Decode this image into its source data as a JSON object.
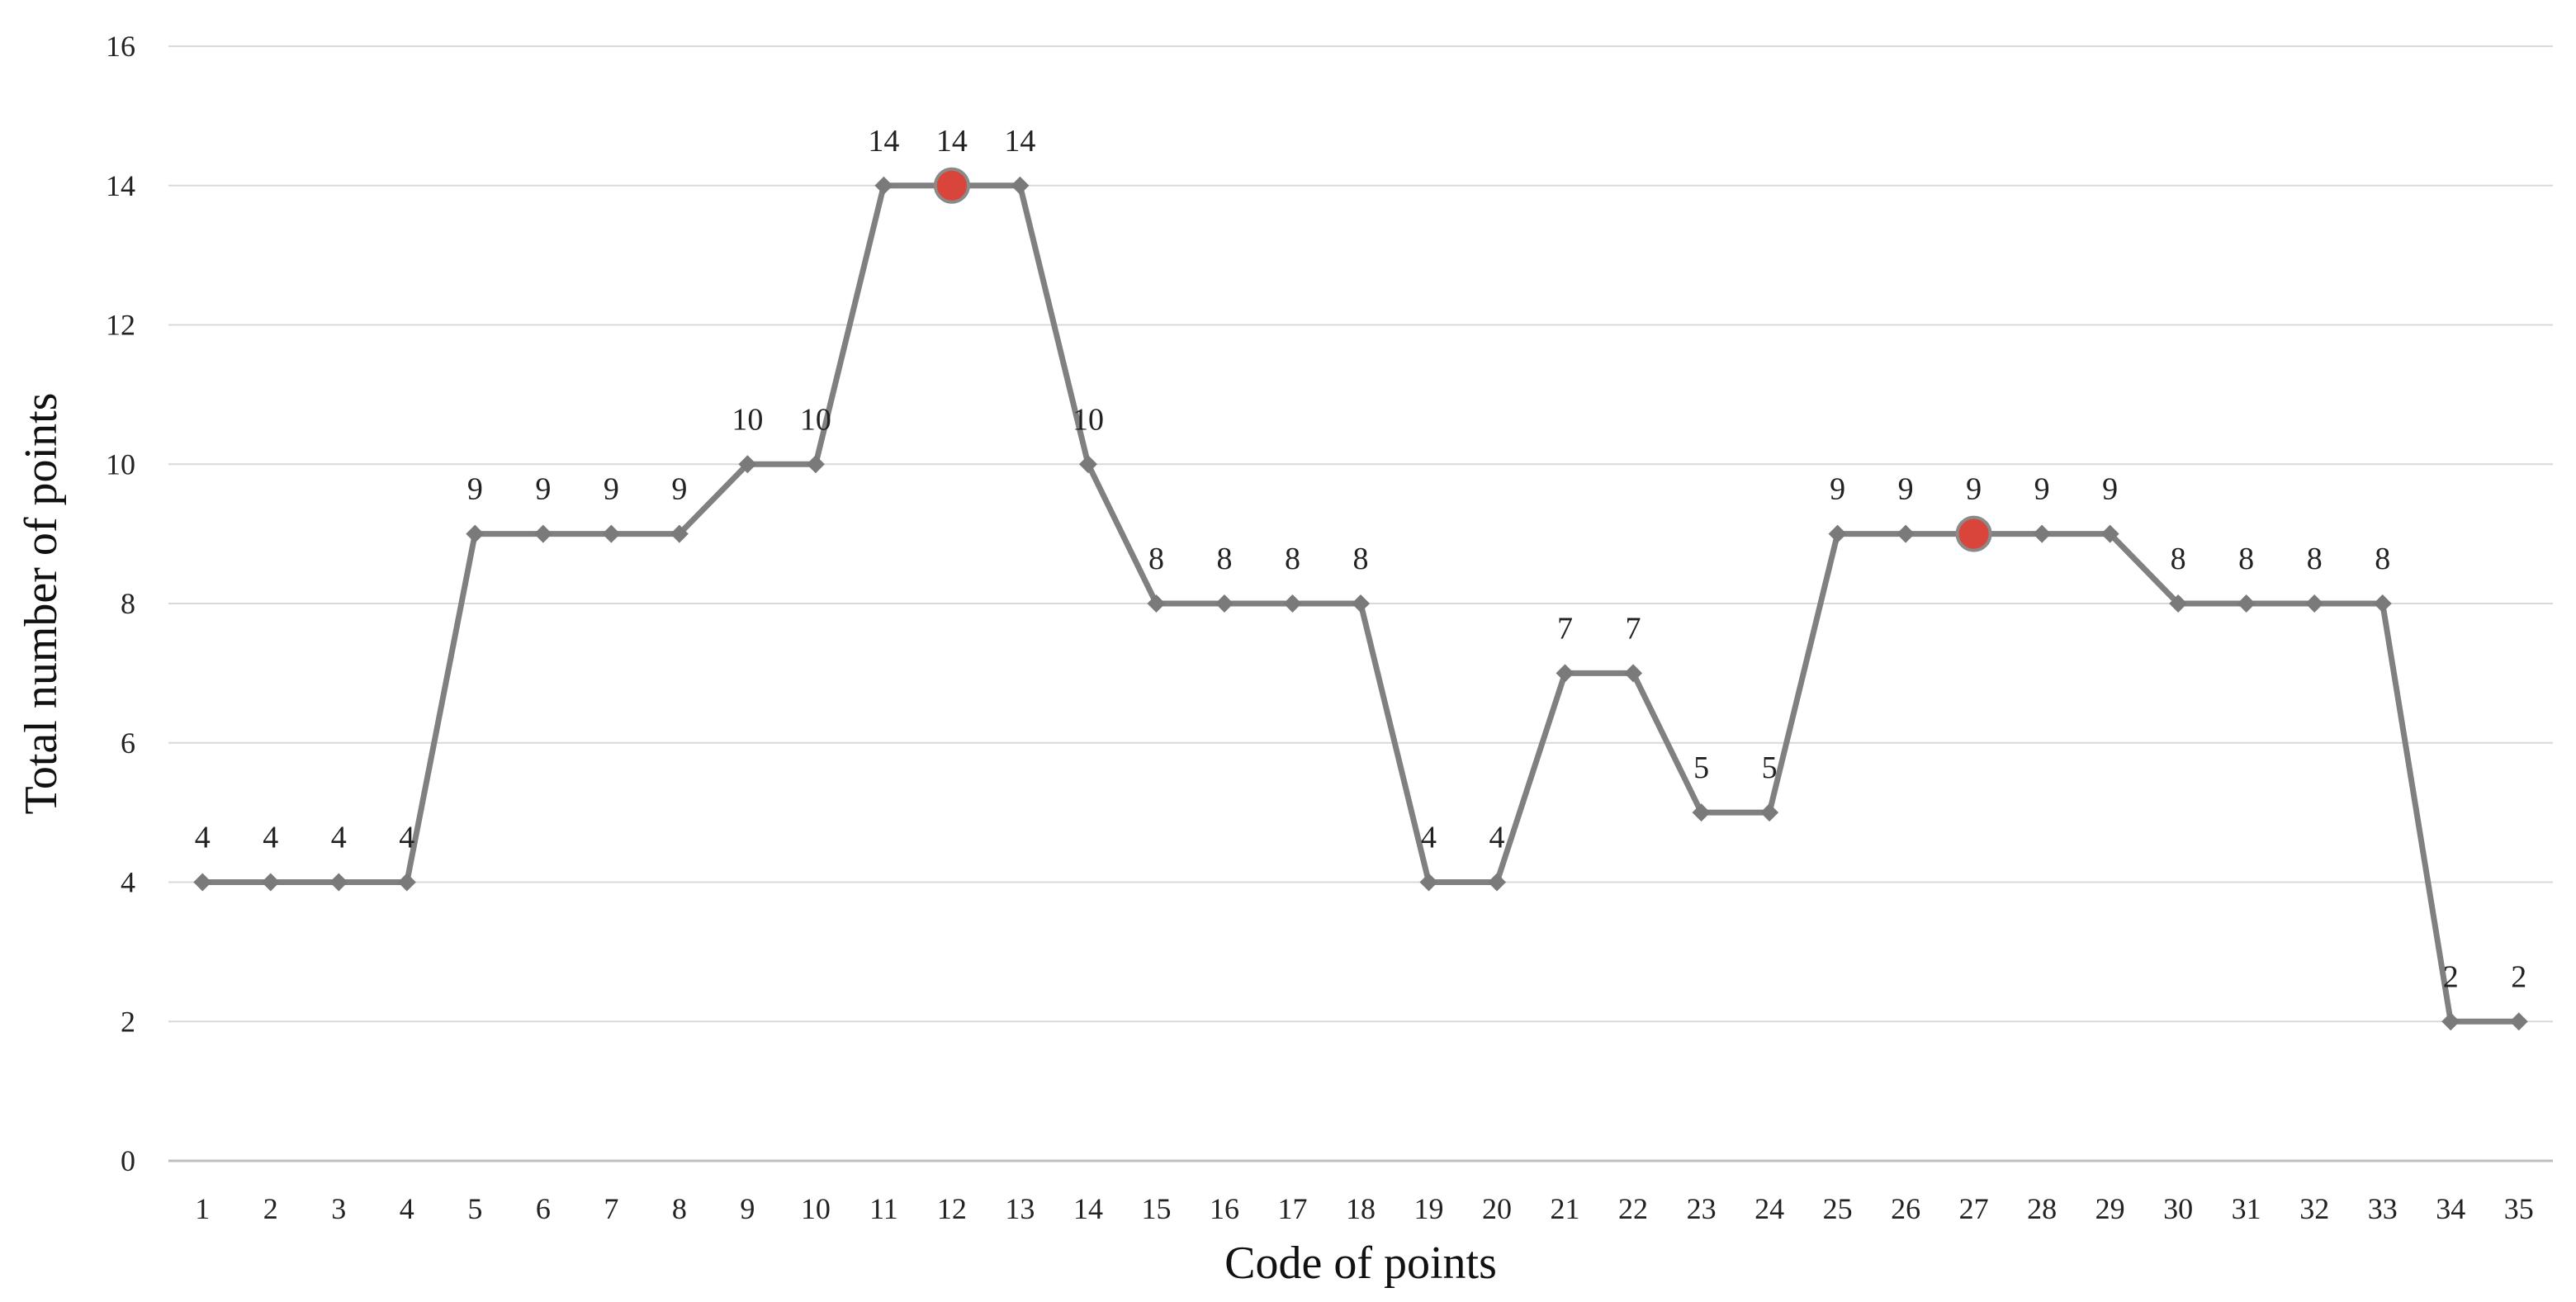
{
  "chart_data": {
    "type": "line",
    "title": "",
    "xlabel": "Code of points",
    "ylabel": "Total number of points",
    "ylim": [
      0,
      16
    ],
    "yticks": [
      0,
      2,
      4,
      6,
      8,
      10,
      12,
      14,
      16
    ],
    "grid": "horizontal",
    "categories": [
      "1",
      "2",
      "3",
      "4",
      "5",
      "6",
      "7",
      "8",
      "9",
      "10",
      "11",
      "12",
      "13",
      "14",
      "15",
      "16",
      "17",
      "18",
      "19",
      "20",
      "21",
      "22",
      "23",
      "24",
      "25",
      "26",
      "27",
      "28",
      "29",
      "30",
      "31",
      "32",
      "33",
      "34",
      "35"
    ],
    "series": [
      {
        "values": [
          4,
          4,
          4,
          4,
          9,
          9,
          9,
          9,
          10,
          10,
          14,
          14,
          14,
          10,
          8,
          8,
          8,
          8,
          4,
          4,
          7,
          7,
          5,
          5,
          9,
          9,
          9,
          9,
          9,
          8,
          8,
          8,
          8,
          2,
          2
        ],
        "color": "#808080",
        "marker": "diamond"
      }
    ],
    "highlighted_points": [
      "12",
      "27"
    ],
    "highlight_color": "#d9453a"
  }
}
